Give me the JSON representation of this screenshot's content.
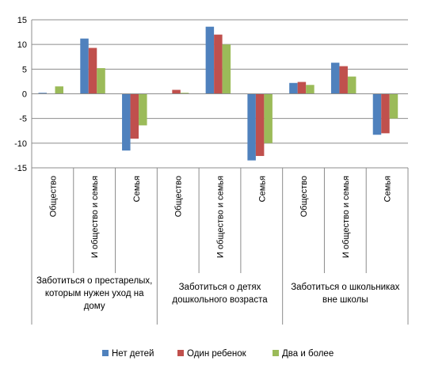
{
  "chart_data": {
    "type": "bar",
    "ylim": [
      -15,
      15
    ],
    "yticks": [
      "15",
      "10",
      "5",
      "0",
      "-5",
      "-10",
      "-15"
    ],
    "grid": true,
    "legend_position": "bottom",
    "groups": [
      {
        "label": "Заботиться о престарелых, которым нужен уход на дому",
        "label_lines": [
          "Заботиться о престарелых,",
          "которым нужен уход на",
          "дому"
        ],
        "categories": [
          "Общество",
          "И общество и семья",
          "Семья"
        ]
      },
      {
        "label": "Заботиться о детях дошкольного возраста",
        "label_lines": [
          "Заботиться о детях",
          "дошкольного возраста"
        ],
        "categories": [
          "Общество",
          "И общество и семья",
          "Семья"
        ]
      },
      {
        "label": "Заботиться о школьниках вне школы",
        "label_lines": [
          "Заботиться о школьниках",
          "вне школы"
        ],
        "categories": [
          "Общество",
          "И общество и семья",
          "Семья"
        ]
      }
    ],
    "series": [
      {
        "name": "Нет детей",
        "color": "#4f81bd",
        "values": [
          0.2,
          11.2,
          -11.5,
          0,
          13.6,
          -13.5,
          2.2,
          6.3,
          -8.3
        ]
      },
      {
        "name": "Один ребенок",
        "color": "#c0504d",
        "values": [
          0,
          9.3,
          -9.1,
          0.8,
          12,
          -12.6,
          2.4,
          5.6,
          -8
        ]
      },
      {
        "name": "Два и более",
        "color": "#9bbb59",
        "values": [
          1.5,
          5.2,
          -6.4,
          0.2,
          10,
          -10,
          1.8,
          3.5,
          -5
        ]
      }
    ]
  }
}
